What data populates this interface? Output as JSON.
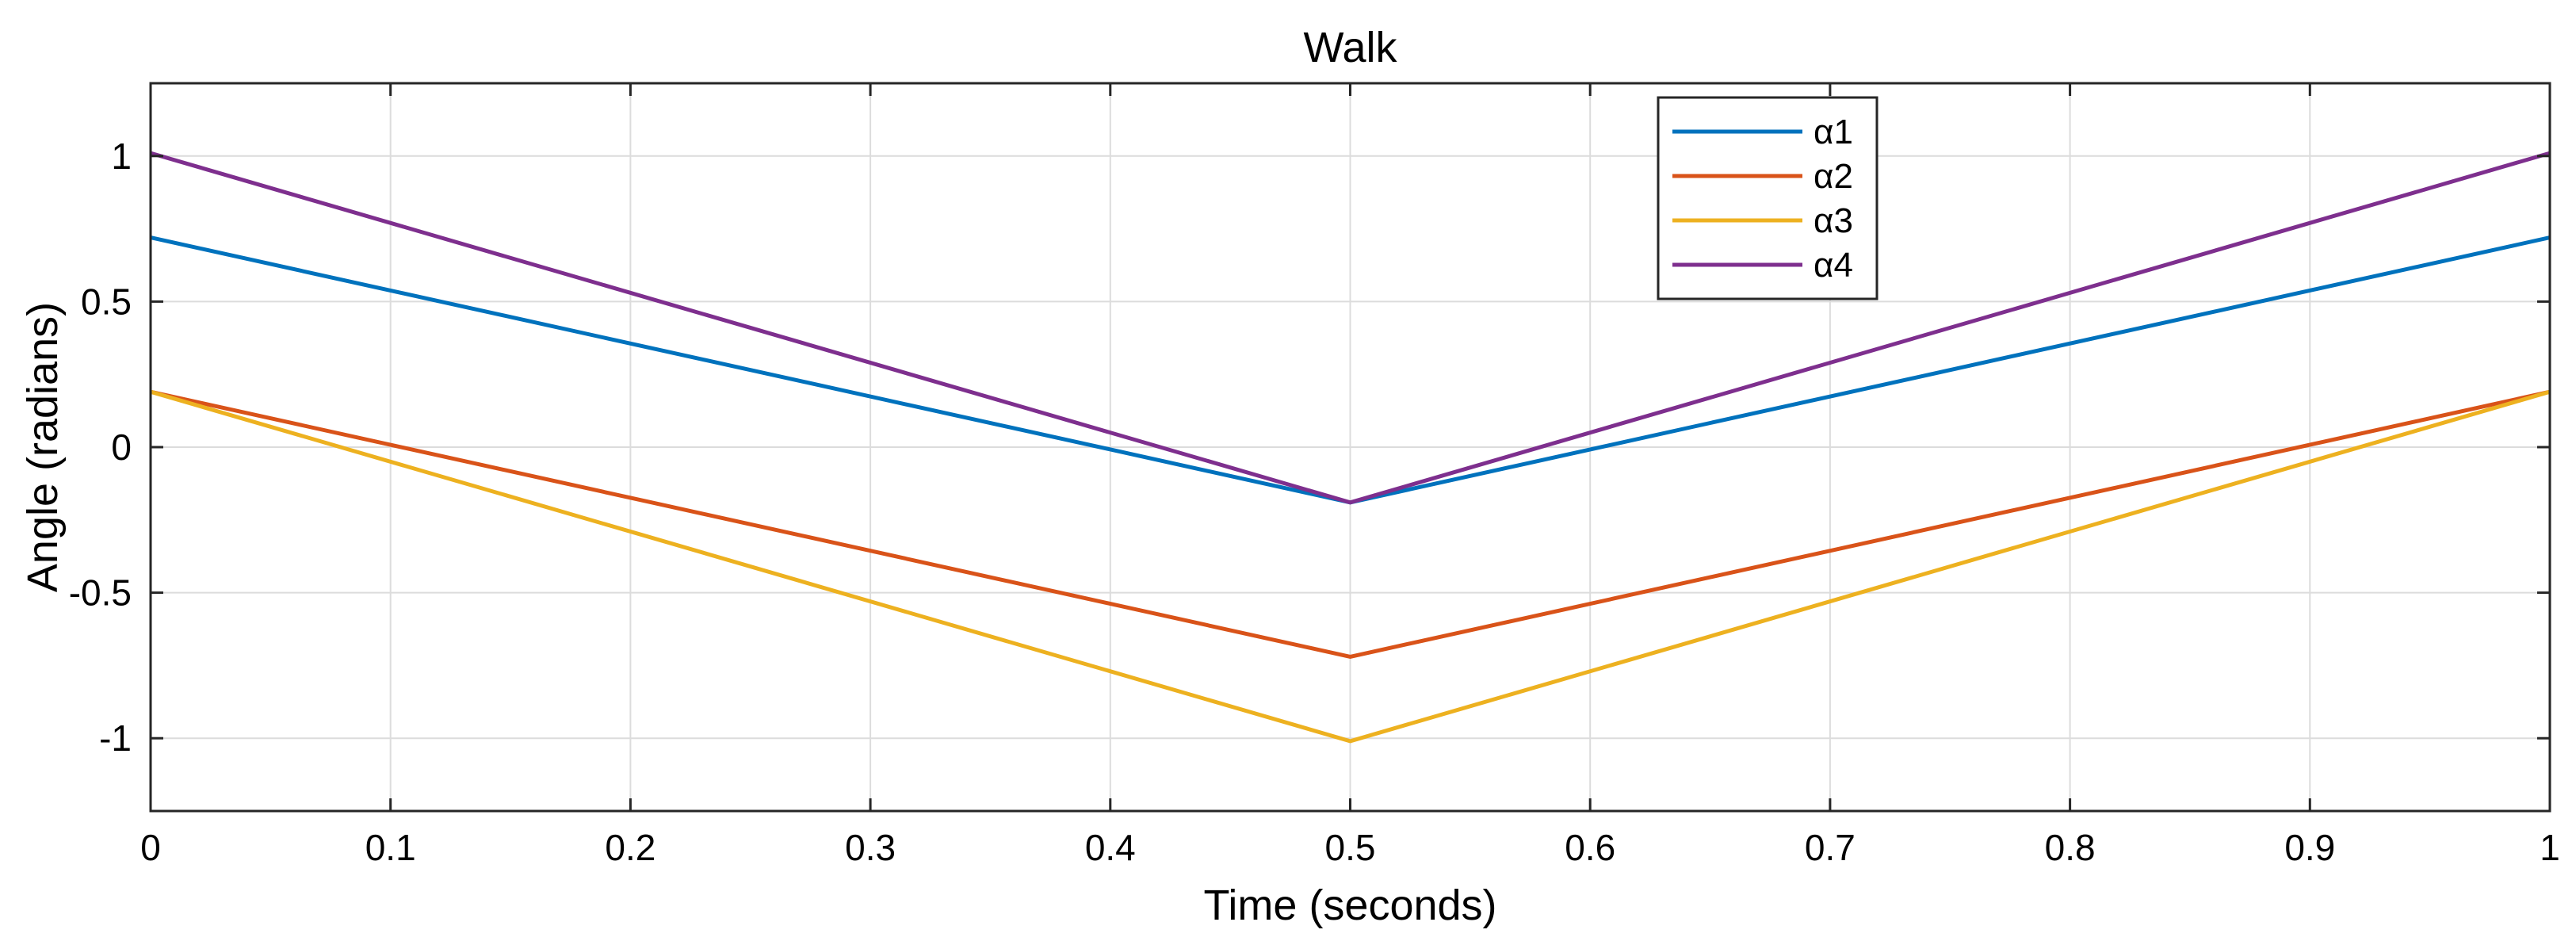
{
  "chart_data": {
    "type": "line",
    "title": "Walk",
    "xlabel": "Time (seconds)",
    "ylabel": "Angle (radians)",
    "xlim": [
      0,
      1
    ],
    "ylim": [
      -1.25,
      1.25
    ],
    "grid": true,
    "legend_position": "top-right",
    "x_ticks": [
      0,
      0.1,
      0.2,
      0.3,
      0.4,
      0.5,
      0.6,
      0.7,
      0.8,
      0.9,
      1
    ],
    "x_tick_labels": [
      "0",
      "0.1",
      "0.2",
      "0.3",
      "0.4",
      "0.5",
      "0.6",
      "0.7",
      "0.8",
      "0.9",
      "1"
    ],
    "y_ticks": [
      1,
      0.5,
      0,
      -0.5,
      -1
    ],
    "y_tick_labels": [
      "1",
      "0.5",
      "0",
      "-0.5",
      "-1"
    ],
    "x": [
      0,
      0.5,
      1
    ],
    "series": [
      {
        "name": "α1",
        "color": "#0072BD",
        "values": [
          0.72,
          -0.19,
          0.72
        ]
      },
      {
        "name": "α2",
        "color": "#D95319",
        "values": [
          0.19,
          -0.72,
          0.19
        ]
      },
      {
        "name": "α3",
        "color": "#EDB120",
        "values": [
          0.19,
          -1.01,
          0.19
        ]
      },
      {
        "name": "α4",
        "color": "#7E2F8E",
        "values": [
          1.01,
          -0.19,
          1.01
        ]
      }
    ]
  }
}
